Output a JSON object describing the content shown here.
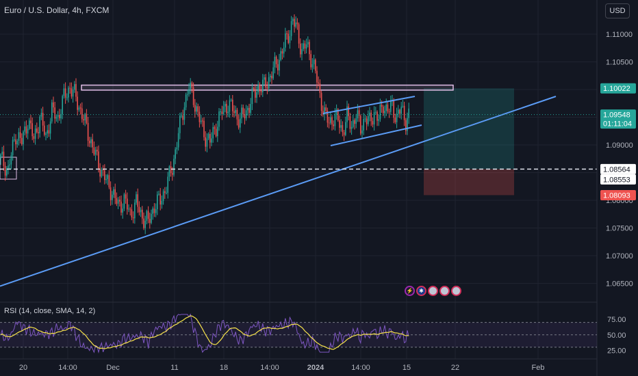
{
  "header": {
    "title": "Euro / U.S. Dollar, 4h, FXCM",
    "currency": "USD"
  },
  "rsi": {
    "label": "RSI (14, close, SMA, 14, 2)",
    "levels": [
      "75.00",
      "50.00",
      "25.00"
    ]
  },
  "colors": {
    "background": "#131722",
    "up": "#26a69a",
    "down": "#ef5350",
    "trendline": "#5b9cf6",
    "rsi_line": "#7e57c2",
    "rsi_ma": "#f7e34b",
    "zone": "#e1bee7"
  },
  "event_icons": [
    "lightning-icon",
    "eu-flag-icon",
    "us-flag-icon",
    "us-flag-icon",
    "us-flag-icon"
  ],
  "chart_data": {
    "type": "candlestick",
    "title": "Euro / U.S. Dollar, 4h, FXCM",
    "y_axis": {
      "ticks": [
        "1.11000",
        "1.10500",
        "1.10000",
        "1.09500",
        "1.09000",
        "1.08500",
        "1.08000",
        "1.07500",
        "1.07000",
        "1.06500"
      ],
      "range": [
        1.0625,
        1.1155
      ]
    },
    "x_axis": {
      "ticks": [
        "20",
        "14:00",
        "Dec",
        "11",
        "18",
        "14:00",
        "2024",
        "14:00",
        "15",
        "22",
        "Feb"
      ]
    },
    "price_badges": [
      {
        "text": "1.10022",
        "kind": "target"
      },
      {
        "text": "1.09548",
        "kind": "last",
        "sub": "01:11:04"
      },
      {
        "text": "1.08564",
        "kind": "entry"
      },
      {
        "text": "1.08553",
        "kind": "ref"
      },
      {
        "text": "1.08093",
        "kind": "stop"
      }
    ],
    "price_path": [
      [
        0,
        1.0875
      ],
      [
        5,
        1.0855
      ],
      [
        10,
        1.092
      ],
      [
        14,
        1.0905
      ],
      [
        18,
        1.0945
      ],
      [
        22,
        1.091
      ],
      [
        26,
        1.095
      ],
      [
        30,
        1.0915
      ],
      [
        34,
        1.096
      ],
      [
        38,
        1.095
      ],
      [
        42,
        1.0985
      ],
      [
        46,
        1.1005
      ],
      [
        50,
        1.0985
      ],
      [
        54,
        1.0955
      ],
      [
        57,
        1.093
      ],
      [
        60,
        1.0905
      ],
      [
        63,
        1.088
      ],
      [
        66,
        1.086
      ],
      [
        70,
        1.0835
      ],
      [
        74,
        1.0815
      ],
      [
        78,
        1.079
      ],
      [
        82,
        1.08
      ],
      [
        86,
        1.0775
      ],
      [
        90,
        1.0795
      ],
      [
        94,
        1.077
      ],
      [
        98,
        1.076
      ],
      [
        102,
        1.079
      ],
      [
        106,
        1.08
      ],
      [
        110,
        1.0825
      ],
      [
        114,
        1.086
      ],
      [
        118,
        1.092
      ],
      [
        122,
        1.0975
      ],
      [
        125,
        1.1005
      ],
      [
        128,
        1.0985
      ],
      [
        131,
        1.0955
      ],
      [
        135,
        1.092
      ],
      [
        139,
        1.0905
      ],
      [
        143,
        1.0935
      ],
      [
        147,
        1.096
      ],
      [
        151,
        1.0975
      ],
      [
        155,
        1.096
      ],
      [
        159,
        1.0945
      ],
      [
        163,
        1.096
      ],
      [
        167,
        1.0985
      ],
      [
        171,
        1.1005
      ],
      [
        175,
        1.1005
      ],
      [
        179,
        1.1025
      ],
      [
        183,
        1.1045
      ],
      [
        187,
        1.107
      ],
      [
        191,
        1.11
      ],
      [
        194,
        1.1125
      ],
      [
        197,
        1.1105
      ],
      [
        200,
        1.107
      ],
      [
        203,
        1.108
      ],
      [
        206,
        1.106
      ],
      [
        209,
        1.103
      ],
      [
        212,
        1.099
      ],
      [
        215,
        1.0955
      ],
      [
        218,
        1.094
      ],
      [
        221,
        1.095
      ],
      [
        224,
        1.0945
      ],
      [
        227,
        1.0925
      ],
      [
        230,
        1.095
      ],
      [
        233,
        1.0935
      ],
      [
        236,
        1.0955
      ],
      [
        239,
        1.093
      ],
      [
        242,
        1.095
      ],
      [
        245,
        1.094
      ],
      [
        248,
        1.096
      ],
      [
        251,
        1.0945
      ],
      [
        254,
        1.0975
      ],
      [
        257,
        1.096
      ],
      [
        260,
        1.097
      ],
      [
        263,
        1.095
      ],
      [
        266,
        1.0965
      ],
      [
        269,
        1.0945
      ],
      [
        272,
        1.0955
      ]
    ],
    "drawings": {
      "resistance_zone": {
        "from": 1.1008,
        "to": 1.0999
      },
      "ascending_trendline": [
        [
          1.0645,
          1.093
        ]
      ],
      "channel_upper": [
        1.0967,
        1.1003
      ],
      "channel_lower": [
        1.0902,
        1.0933
      ],
      "entry_level": 1.08564,
      "target_level": 1.10022,
      "stop_level": 1.08093
    },
    "rsi_range": [
      20,
      85
    ]
  }
}
